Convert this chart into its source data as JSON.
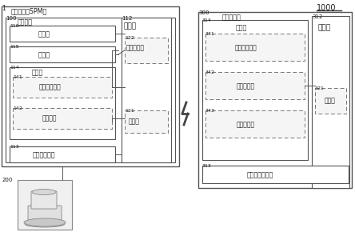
{
  "fig_width": 4.44,
  "fig_height": 2.95,
  "bg_color": "#ffffff",
  "t1": "1",
  "t1000": "1000",
  "t200": "200",
  "t_spm": "分析装置（SPM）",
  "t100": "100",
  "t_ctrl": "控制装置",
  "t112": "112",
  "t_ysp_l": "运算部",
  "t122": "122",
  "t_xskzb": "显示控制部",
  "t121": "121",
  "t_fxb": "分析部",
  "t116": "116",
  "t_srb": "输入部",
  "t115": "115",
  "t_xsb": "显示部",
  "t114": "114",
  "t_ccb": "存储部",
  "t141": "141",
  "t_xskzcx": "显示控制程序",
  "t142": "142",
  "t_fxcx": "分析程序",
  "t113": "113",
  "t_zztxb": "装置侧通信部",
  "t300": "300",
  "t_svr": "服务器装置",
  "t312": "312",
  "t_ysp_r": "运算部",
  "t314": "314",
  "t_ccb_r": "存储部",
  "t341": "341",
  "t_xxgcx": "信息提供程序",
  "t342": "342",
  "t_bjglb": "部件管理表",
  "t343": "343",
  "t_yhglb": "用户管理表",
  "t313": "313",
  "t_fwqtxb": "服务器侧通信部",
  "t321": "321",
  "t_pdb": "判定部"
}
